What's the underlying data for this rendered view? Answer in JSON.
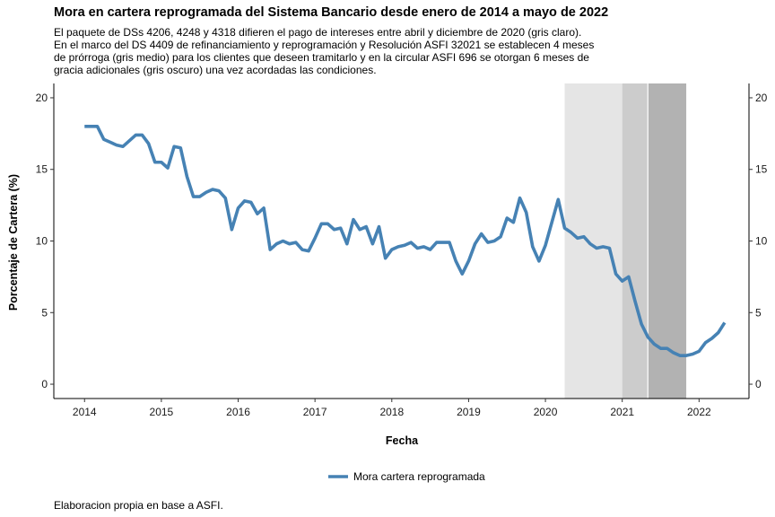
{
  "title": "Mora en cartera reprogramada del Sistema Bancario desde enero de 2014 a mayo de 2022",
  "subtitle": "El paquete de DSs 4206, 4248 y 4318 difieren el pago de intereses entre abril y diciembre de 2020 (gris claro).\nEn el marco del DS 4409 de refinanciamiento y reprogramación y Resolución ASFI 32021 se establecen 4 meses\nde prórroga (gris medio) para los clientes que deseen tramitarlo y en la circular ASFI 696 se otorgan 6 meses de\ngracia adicionales (gris oscuro) una vez acordadas las condiciones.",
  "caption": "Elaboracion propia en base a ASFI.",
  "colors": {
    "line": "#4682b4",
    "shade_light": "#e5e5e5",
    "shade_medium": "#cccccc",
    "shade_dark": "#b2b2b2"
  },
  "chart_data": {
    "type": "line",
    "xlabel": "Fecha",
    "ylabel": "Porcentaje de Cartera (%)",
    "xlim": [
      2013.6,
      2022.65
    ],
    "ylim": [
      -1.0,
      21.0
    ],
    "x_ticks": [
      2014,
      2015,
      2016,
      2017,
      2018,
      2019,
      2020,
      2021,
      2022
    ],
    "x_tick_labels": [
      "2014",
      "2015",
      "2016",
      "2017",
      "2018",
      "2019",
      "2020",
      "2021",
      "2022"
    ],
    "y_ticks": [
      0,
      5,
      10,
      15,
      20
    ],
    "y_tick_labels": [
      "0",
      "5",
      "10",
      "15",
      "20"
    ],
    "legend_position": "bottom",
    "shaded_periods": [
      {
        "start": "2020-04",
        "end": "2020-12",
        "shade": "light"
      },
      {
        "start": "2021-01",
        "end": "2021-04",
        "shade": "medium"
      },
      {
        "start": "2021-05",
        "end": "2021-10",
        "shade": "dark"
      }
    ],
    "series": [
      {
        "name": "Mora cartera reprogramada",
        "x": [
          "2014-01",
          "2014-02",
          "2014-03",
          "2014-04",
          "2014-05",
          "2014-06",
          "2014-07",
          "2014-08",
          "2014-09",
          "2014-10",
          "2014-11",
          "2014-12",
          "2015-01",
          "2015-02",
          "2015-03",
          "2015-04",
          "2015-05",
          "2015-06",
          "2015-07",
          "2015-08",
          "2015-09",
          "2015-10",
          "2015-11",
          "2015-12",
          "2016-01",
          "2016-02",
          "2016-03",
          "2016-04",
          "2016-05",
          "2016-06",
          "2016-07",
          "2016-08",
          "2016-09",
          "2016-10",
          "2016-11",
          "2016-12",
          "2017-01",
          "2017-02",
          "2017-03",
          "2017-04",
          "2017-05",
          "2017-06",
          "2017-07",
          "2017-08",
          "2017-09",
          "2017-10",
          "2017-11",
          "2017-12",
          "2018-01",
          "2018-02",
          "2018-03",
          "2018-04",
          "2018-05",
          "2018-06",
          "2018-07",
          "2018-08",
          "2018-09",
          "2018-10",
          "2018-11",
          "2018-12",
          "2019-01",
          "2019-02",
          "2019-03",
          "2019-04",
          "2019-05",
          "2019-06",
          "2019-07",
          "2019-08",
          "2019-09",
          "2019-10",
          "2019-11",
          "2019-12",
          "2020-01",
          "2020-02",
          "2020-03",
          "2020-04",
          "2020-05",
          "2020-06",
          "2020-07",
          "2020-08",
          "2020-09",
          "2020-10",
          "2020-11",
          "2020-12",
          "2021-01",
          "2021-02",
          "2021-03",
          "2021-04",
          "2021-05",
          "2021-06",
          "2021-07",
          "2021-08",
          "2021-09",
          "2021-10",
          "2021-11",
          "2021-12",
          "2022-01",
          "2022-02",
          "2022-03",
          "2022-04",
          "2022-05"
        ],
        "values": [
          18.0,
          18.0,
          18.0,
          17.1,
          16.9,
          16.7,
          16.6,
          17.0,
          17.4,
          17.4,
          16.8,
          15.5,
          15.5,
          15.1,
          16.6,
          16.5,
          14.5,
          13.1,
          13.1,
          13.4,
          13.6,
          13.5,
          13.0,
          10.8,
          12.3,
          12.8,
          12.7,
          11.9,
          12.3,
          9.4,
          9.8,
          10.0,
          9.8,
          9.9,
          9.4,
          9.3,
          10.2,
          11.2,
          11.2,
          10.8,
          10.9,
          9.8,
          11.5,
          10.8,
          11.0,
          9.8,
          11.0,
          8.8,
          9.4,
          9.6,
          9.7,
          9.9,
          9.5,
          9.6,
          9.4,
          9.9,
          9.9,
          9.9,
          8.6,
          7.7,
          8.6,
          9.8,
          10.5,
          9.9,
          10.0,
          10.3,
          11.6,
          11.3,
          13.0,
          12.0,
          9.6,
          8.6,
          9.7,
          11.3,
          12.9,
          10.9,
          10.6,
          10.2,
          10.3,
          9.8,
          9.5,
          9.6,
          9.5,
          7.7,
          7.2,
          7.5,
          5.8,
          4.2,
          3.3,
          2.8,
          2.5,
          2.5,
          2.2,
          2.0,
          2.0,
          2.1,
          2.3,
          2.9,
          3.2,
          3.6,
          4.3
        ]
      }
    ]
  }
}
